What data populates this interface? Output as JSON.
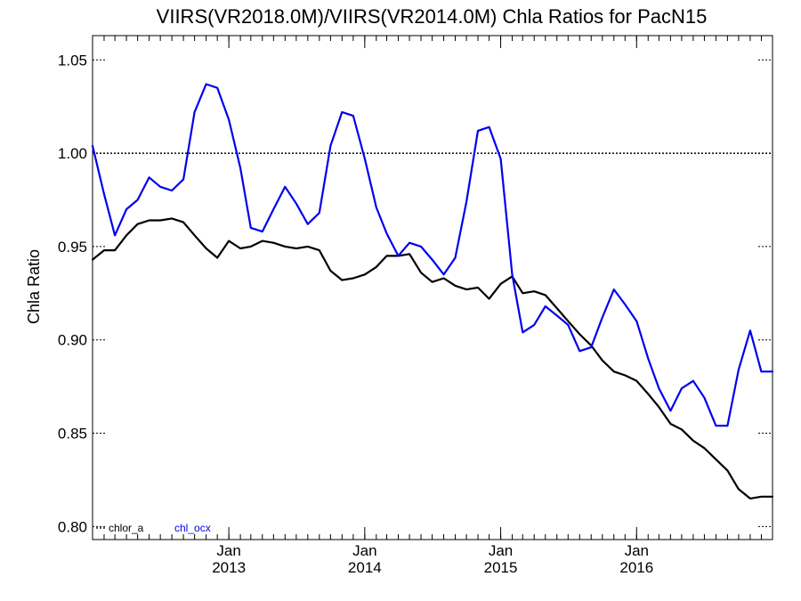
{
  "chart_data": {
    "type": "line",
    "title": "VIIRS(VR2018.0M)/VIIRS(VR2014.0M)  Chla Ratios for PacN15",
    "xlabel": "",
    "ylabel": "Chla Ratio",
    "ylim": [
      0.793,
      1.063
    ],
    "xlim": [
      "2012-01-01",
      "2016-12-31"
    ],
    "yticks": [
      {
        "value": 0.8,
        "label": "0.80"
      },
      {
        "value": 0.85,
        "label": "0.85"
      },
      {
        "value": 0.9,
        "label": "0.90"
      },
      {
        "value": 0.95,
        "label": "0.95"
      },
      {
        "value": 1.0,
        "label": "1.00"
      },
      {
        "value": 1.05,
        "label": "1.05"
      }
    ],
    "xticks": [
      {
        "date": "2013-01-01",
        "label_top": "Jan",
        "label_bottom": "2013"
      },
      {
        "date": "2014-01-01",
        "label_top": "Jan",
        "label_bottom": "2014"
      },
      {
        "date": "2015-01-01",
        "label_top": "Jan",
        "label_bottom": "2015"
      },
      {
        "date": "2016-01-01",
        "label_top": "Jan",
        "label_bottom": "2016"
      }
    ],
    "reference_line": {
      "value": 1.0,
      "style": "dotted"
    },
    "grid": false,
    "legend_position": "bottom-left",
    "x": [
      "2012-01-01",
      "2012-02-01",
      "2012-03-01",
      "2012-04-01",
      "2012-05-01",
      "2012-06-01",
      "2012-07-01",
      "2012-08-01",
      "2012-09-01",
      "2012-10-01",
      "2012-11-01",
      "2012-12-01",
      "2013-01-01",
      "2013-02-01",
      "2013-03-01",
      "2013-04-01",
      "2013-05-01",
      "2013-06-01",
      "2013-07-01",
      "2013-08-01",
      "2013-09-01",
      "2013-10-01",
      "2013-11-01",
      "2013-12-01",
      "2014-01-01",
      "2014-02-01",
      "2014-03-01",
      "2014-04-01",
      "2014-05-01",
      "2014-06-01",
      "2014-07-01",
      "2014-08-01",
      "2014-09-01",
      "2014-10-01",
      "2014-11-01",
      "2014-12-01",
      "2015-01-01",
      "2015-02-01",
      "2015-03-01",
      "2015-04-01",
      "2015-05-01",
      "2015-06-01",
      "2015-07-01",
      "2015-08-01",
      "2015-09-01",
      "2015-10-01",
      "2015-11-01",
      "2015-12-01",
      "2016-01-01",
      "2016-02-01",
      "2016-03-01",
      "2016-04-01",
      "2016-05-01",
      "2016-06-01",
      "2016-07-01",
      "2016-08-01",
      "2016-09-01",
      "2016-10-01",
      "2016-11-01",
      "2016-12-01",
      "2016-12-31"
    ],
    "series": [
      {
        "name": "chlor_a",
        "color": "#000000",
        "values": [
          0.943,
          0.948,
          0.948,
          0.956,
          0.962,
          0.964,
          0.964,
          0.965,
          0.963,
          0.956,
          0.949,
          0.944,
          0.953,
          0.949,
          0.95,
          0.953,
          0.952,
          0.95,
          0.949,
          0.95,
          0.948,
          0.937,
          0.932,
          0.933,
          0.935,
          0.939,
          0.945,
          0.945,
          0.946,
          0.936,
          0.931,
          0.933,
          0.929,
          0.927,
          0.928,
          0.922,
          0.93,
          0.934,
          0.925,
          0.926,
          0.924,
          0.917,
          0.91,
          0.903,
          0.897,
          0.889,
          0.883,
          0.881,
          0.878,
          0.871,
          0.864,
          0.855,
          0.852,
          0.846,
          0.842,
          0.836,
          0.83,
          0.82,
          0.815,
          0.816,
          0.816
        ]
      },
      {
        "name": "chl_ocx",
        "color": "#0000ee",
        "values": [
          1.004,
          0.978,
          0.956,
          0.97,
          0.975,
          0.987,
          0.982,
          0.98,
          0.986,
          1.022,
          1.037,
          1.035,
          1.018,
          0.992,
          0.96,
          0.958,
          0.97,
          0.982,
          0.973,
          0.962,
          0.968,
          1.004,
          1.022,
          1.02,
          0.997,
          0.971,
          0.957,
          0.945,
          0.952,
          0.95,
          0.943,
          0.935,
          0.944,
          0.974,
          1.012,
          1.014,
          0.997,
          0.935,
          0.904,
          0.908,
          0.918,
          0.913,
          0.908,
          0.894,
          0.896,
          0.912,
          0.927,
          0.919,
          0.91,
          0.89,
          0.874,
          0.862,
          0.874,
          0.878,
          0.869,
          0.854,
          0.854,
          0.884,
          0.905,
          0.883,
          0.883
        ]
      }
    ]
  }
}
